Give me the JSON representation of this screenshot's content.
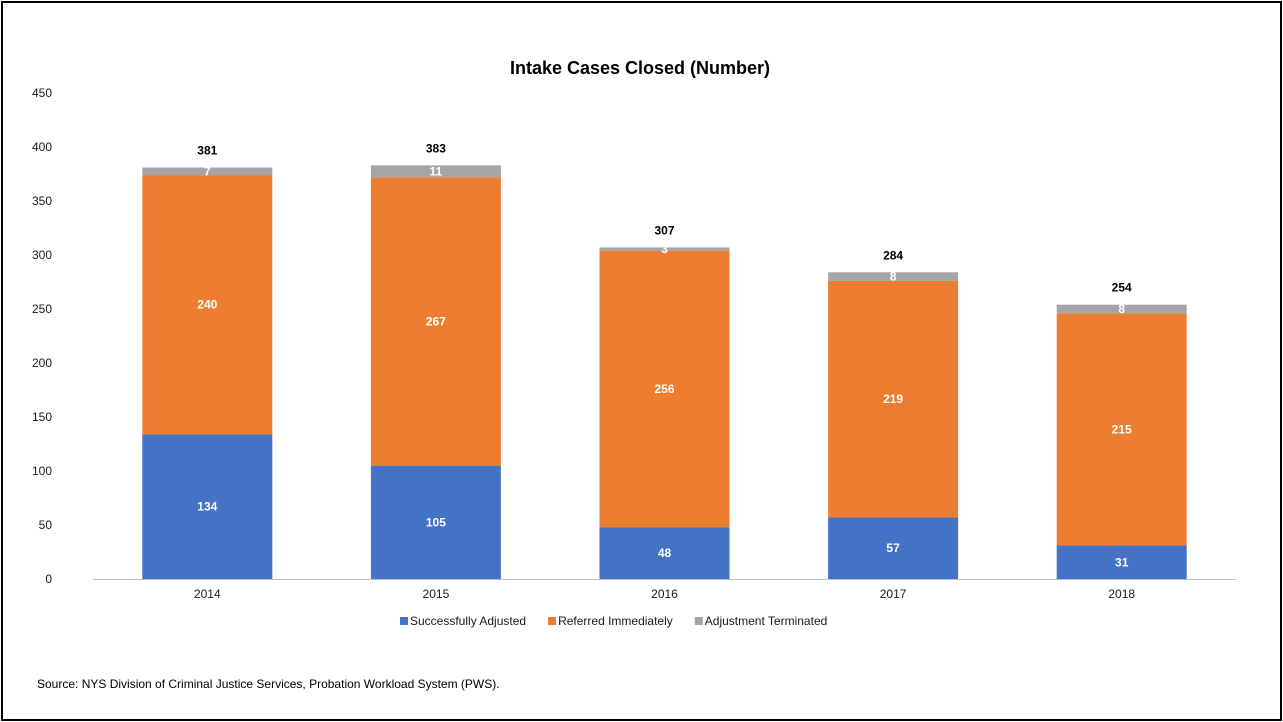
{
  "chart_data": {
    "type": "bar",
    "stacked": true,
    "title": "Intake Cases Closed (Number)",
    "xlabel": "",
    "ylabel": "",
    "categories": [
      "2014",
      "2015",
      "2016",
      "2017",
      "2018"
    ],
    "series": [
      {
        "name": "Successfully Adjusted",
        "color": "#4472C4",
        "values": [
          134,
          105,
          48,
          57,
          31
        ]
      },
      {
        "name": "Referred Immediately",
        "color": "#ED7D31",
        "values": [
          240,
          267,
          256,
          219,
          215
        ]
      },
      {
        "name": "Adjustment Terminated",
        "color": "#A5A5A5",
        "values": [
          7,
          11,
          3,
          8,
          8
        ]
      }
    ],
    "totals": [
      381,
      383,
      307,
      284,
      254
    ],
    "ylim": [
      0,
      450
    ],
    "yticks": [
      0,
      50,
      100,
      150,
      200,
      250,
      300,
      350,
      400,
      450
    ],
    "grid": false,
    "legend_position": "bottom"
  },
  "source_note": "Source: NYS Division of Criminal Justice Services, Probation Workload System (PWS)."
}
